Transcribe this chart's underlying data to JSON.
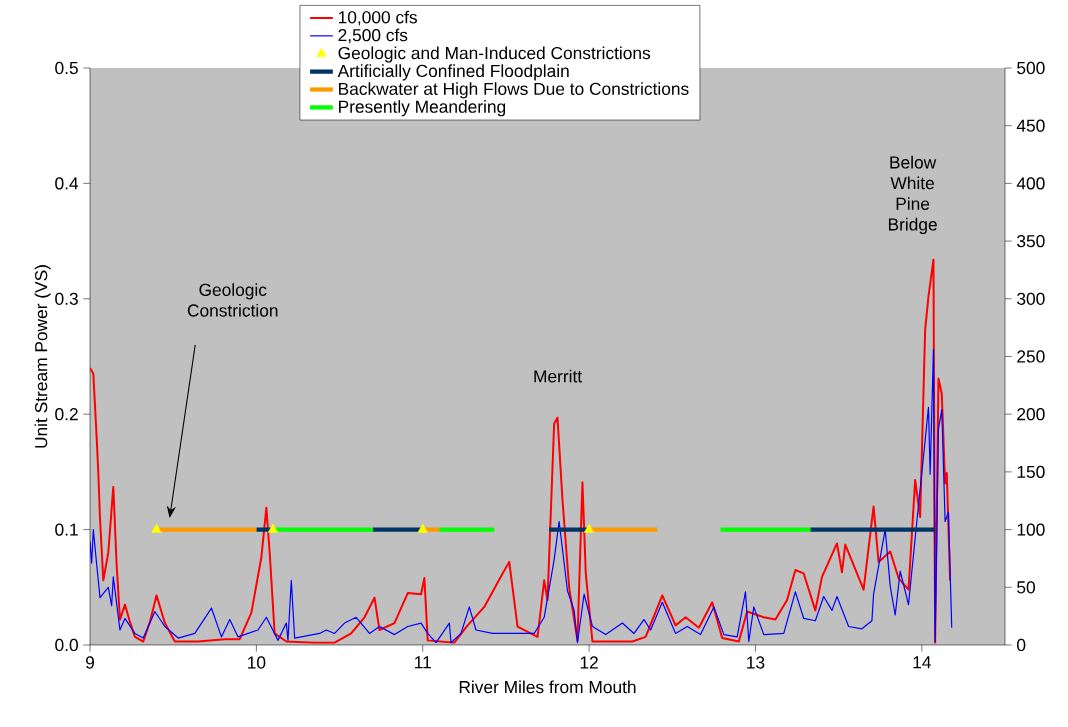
{
  "chart_data": {
    "type": "line",
    "xlabel": "River Miles from Mouth",
    "ylabel": "Unit Stream Power (VS)",
    "xlim": [
      9,
      14.5
    ],
    "xticks": [
      9,
      10,
      11,
      12,
      13,
      14
    ],
    "ylim": [
      0,
      0.5
    ],
    "yticks": [
      {
        "value": 0,
        "label": "0.0"
      },
      {
        "value": 0.1,
        "label": "0.1"
      },
      {
        "value": 0.2,
        "label": "0.2"
      },
      {
        "value": 0.3,
        "label": "0.3"
      },
      {
        "value": 0.4,
        "label": "0.4"
      },
      {
        "value": 0.5,
        "label": "0.5"
      }
    ],
    "y2lim": [
      0,
      500
    ],
    "y2ticks": [
      0,
      50,
      100,
      150,
      200,
      250,
      300,
      350,
      400,
      450,
      500
    ],
    "legend": "top",
    "grid": false,
    "annotations": [
      "Geologic Constriction",
      "Merritt",
      "Below White Pine Bridge"
    ],
    "series": [
      {
        "name": "10,000 cfs",
        "color": "#ff0000",
        "x": [
          9.0,
          9.02,
          9.04,
          9.05,
          9.06,
          9.08,
          9.11,
          9.14,
          9.16,
          9.18,
          9.21,
          9.24,
          9.27,
          9.32,
          9.36,
          9.4,
          9.45,
          9.51,
          9.65,
          9.81,
          9.9,
          9.97,
          10.03,
          10.06,
          10.08,
          10.11,
          10.18,
          10.35,
          10.47,
          10.57,
          10.65,
          10.71,
          10.74,
          10.83,
          10.91,
          10.99,
          11.01,
          11.03,
          11.19,
          11.27,
          11.37,
          11.48,
          11.52,
          11.57,
          11.69,
          11.73,
          11.75,
          11.79,
          11.81,
          11.84,
          11.88,
          11.93,
          11.96,
          11.98,
          12.02,
          12.26,
          12.34,
          12.44,
          12.52,
          12.58,
          12.66,
          12.74,
          12.8,
          12.9,
          12.95,
          13.05,
          13.12,
          13.19,
          13.24,
          13.29,
          13.36,
          13.4,
          13.49,
          13.52,
          13.54,
          13.65,
          13.71,
          13.74,
          13.81,
          13.86,
          13.92,
          13.96,
          13.99,
          14.02,
          14.04,
          14.07,
          14.08,
          14.1,
          14.12,
          14.14,
          14.15,
          14.17
        ],
        "values": [
          0.24,
          0.235,
          0.18,
          0.149,
          0.11,
          0.056,
          0.08,
          0.137,
          0.07,
          0.022,
          0.035,
          0.02,
          0.007,
          0.003,
          0.02,
          0.043,
          0.019,
          0.003,
          0.003,
          0.005,
          0.005,
          0.028,
          0.076,
          0.119,
          0.08,
          0.01,
          0.003,
          0.002,
          0.002,
          0.01,
          0.024,
          0.041,
          0.013,
          0.019,
          0.045,
          0.044,
          0.058,
          0.004,
          0.002,
          0.017,
          0.033,
          0.062,
          0.072,
          0.016,
          0.007,
          0.056,
          0.039,
          0.192,
          0.197,
          0.126,
          0.05,
          0.004,
          0.141,
          0.062,
          0.003,
          0.003,
          0.007,
          0.043,
          0.017,
          0.024,
          0.015,
          0.037,
          0.006,
          0.003,
          0.029,
          0.024,
          0.022,
          0.039,
          0.065,
          0.062,
          0.03,
          0.059,
          0.088,
          0.063,
          0.087,
          0.048,
          0.12,
          0.072,
          0.081,
          0.058,
          0.048,
          0.143,
          0.111,
          0.273,
          0.302,
          0.334,
          0.002,
          0.231,
          0.218,
          0.14,
          0.149,
          0.056
        ]
      },
      {
        "name": "2,500 cfs",
        "color": "#0000ff",
        "x": [
          9.0,
          9.01,
          9.02,
          9.04,
          9.06,
          9.11,
          9.13,
          9.14,
          9.18,
          9.21,
          9.27,
          9.32,
          9.39,
          9.45,
          9.53,
          9.63,
          9.73,
          9.79,
          9.84,
          9.89,
          10.01,
          10.06,
          10.13,
          10.18,
          10.19,
          10.21,
          10.23,
          10.38,
          10.42,
          10.47,
          10.53,
          10.6,
          10.68,
          10.74,
          10.83,
          10.91,
          10.99,
          11.03,
          11.08,
          11.16,
          11.17,
          11.23,
          11.28,
          11.32,
          11.42,
          11.55,
          11.67,
          11.73,
          11.79,
          11.82,
          11.87,
          11.91,
          11.93,
          11.97,
          12.02,
          12.1,
          12.2,
          12.27,
          12.33,
          12.37,
          12.44,
          12.52,
          12.59,
          12.67,
          12.75,
          12.81,
          12.89,
          12.94,
          12.96,
          12.99,
          13.05,
          13.17,
          13.24,
          13.29,
          13.36,
          13.41,
          13.46,
          13.49,
          13.56,
          13.64,
          13.7,
          13.71,
          13.78,
          13.81,
          13.84,
          13.87,
          13.92,
          13.97,
          14.01,
          14.04,
          14.05,
          14.07,
          14.08,
          14.1,
          14.12,
          14.14,
          14.16,
          14.18
        ],
        "values": [
          0.09,
          0.071,
          0.1,
          0.07,
          0.041,
          0.05,
          0.034,
          0.059,
          0.013,
          0.023,
          0.01,
          0.006,
          0.029,
          0.016,
          0.006,
          0.01,
          0.032,
          0.007,
          0.022,
          0.007,
          0.013,
          0.024,
          0.004,
          0.019,
          0.004,
          0.056,
          0.006,
          0.01,
          0.013,
          0.01,
          0.019,
          0.024,
          0.01,
          0.016,
          0.009,
          0.016,
          0.019,
          0.01,
          0.002,
          0.019,
          0.002,
          0.01,
          0.033,
          0.013,
          0.01,
          0.01,
          0.01,
          0.024,
          0.074,
          0.107,
          0.047,
          0.03,
          0.002,
          0.044,
          0.016,
          0.009,
          0.019,
          0.01,
          0.022,
          0.013,
          0.037,
          0.01,
          0.016,
          0.009,
          0.033,
          0.009,
          0.007,
          0.046,
          0.003,
          0.033,
          0.009,
          0.01,
          0.046,
          0.023,
          0.021,
          0.042,
          0.03,
          0.042,
          0.016,
          0.014,
          0.021,
          0.044,
          0.1,
          0.051,
          0.026,
          0.064,
          0.035,
          0.107,
          0.163,
          0.206,
          0.148,
          0.256,
          0.003,
          0.187,
          0.204,
          0.107,
          0.115,
          0.015
        ]
      },
      {
        "name": "Geologic and Man-Induced Constrictions",
        "type": "scatter",
        "axis": "y2",
        "marker": "triangle",
        "color": "#ffff00",
        "x": [
          9.4,
          10.1,
          11.0,
          12.0
        ],
        "values": [
          100,
          100,
          100,
          100
        ]
      },
      {
        "name": "Artificially Confined Floodplain",
        "type": "line",
        "axis": "y2",
        "color": "#003366",
        "x": [
          10.0,
          10.1,
          10.4,
          10.7,
          11.0,
          11.4,
          11.76,
          12.0,
          12.6,
          13.33,
          14.08
        ],
        "values": [
          100,
          100,
          null,
          100,
          100,
          null,
          100,
          100,
          null,
          100,
          100
        ]
      },
      {
        "name": "Backwater at High Flows Due to Constrictions",
        "type": "line",
        "axis": "y2",
        "color": "#ff9900",
        "x": [
          9.4,
          10.0,
          10.5,
          11.0,
          11.1,
          11.5,
          12.0,
          12.41
        ],
        "values": [
          100,
          100,
          null,
          100,
          100,
          null,
          100,
          100
        ]
      },
      {
        "name": "Presently Meandering",
        "type": "line",
        "axis": "y2",
        "color": "#00ff00",
        "x": [
          10.1,
          10.7,
          10.9,
          11.1,
          11.43,
          12.1,
          12.79,
          13.33
        ],
        "values": [
          100,
          100,
          null,
          100,
          100,
          null,
          100,
          100
        ]
      }
    ]
  }
}
